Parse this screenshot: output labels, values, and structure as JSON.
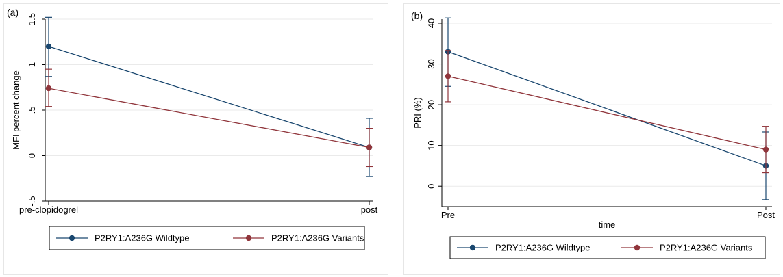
{
  "chart_data": [
    {
      "panel_label": "(a)",
      "type": "line",
      "categories": [
        "pre-clopidogrel",
        "post"
      ],
      "xlabel": "",
      "ylabel": "MFI percent change",
      "ylim": [
        -0.5,
        1.5
      ],
      "yticks": [
        -0.5,
        0,
        0.5,
        1,
        1.5
      ],
      "ytick_labels": [
        "-.5",
        "0",
        ".5",
        "1",
        "1.5"
      ],
      "grid": true,
      "legend_position": "bottom",
      "series": [
        {
          "name": "P2RY1:A236G Wildtype",
          "color": "#1a476f",
          "values": [
            1.2,
            0.09
          ],
          "ci_low": [
            0.87,
            -0.23
          ],
          "ci_high": [
            1.52,
            0.41
          ]
        },
        {
          "name": "P2RY1:A236G Variants",
          "color": "#90353b",
          "values": [
            0.74,
            0.09
          ],
          "ci_low": [
            0.54,
            -0.12
          ],
          "ci_high": [
            0.95,
            0.3
          ]
        }
      ]
    },
    {
      "panel_label": "(b)",
      "type": "line",
      "categories": [
        "Pre",
        "Post"
      ],
      "xlabel": "time",
      "ylabel": "PRI (%)",
      "ylim": [
        -5,
        41
      ],
      "yticks": [
        0,
        10,
        20,
        30,
        40
      ],
      "ytick_labels": [
        "0",
        "10",
        "20",
        "30",
        "40"
      ],
      "grid": true,
      "legend_position": "bottom",
      "series": [
        {
          "name": "P2RY1:A236G Wildtype",
          "color": "#1a476f",
          "values": [
            33,
            5
          ],
          "ci_low": [
            24.5,
            -3.3
          ],
          "ci_high": [
            41.3,
            13.3
          ]
        },
        {
          "name": "P2RY1:A236G Variants",
          "color": "#90353b",
          "values": [
            27,
            9
          ],
          "ci_low": [
            20.7,
            3.3
          ],
          "ci_high": [
            33.3,
            14.7
          ]
        }
      ]
    }
  ]
}
